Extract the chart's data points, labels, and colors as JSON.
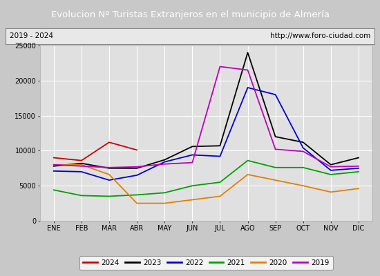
{
  "title": "Evolucion Nº Turistas Extranjeros en el municipio de Almería",
  "subtitle_left": "2019 - 2024",
  "subtitle_right": "http://www.foro-ciudad.com",
  "title_bg_color": "#5080c8",
  "title_text_color": "#ffffff",
  "subtitle_bg_color": "#e8e8e8",
  "subtitle_text_color": "#000000",
  "plot_bg_color": "#e0e0e0",
  "outer_bg_color": "#c8c8c8",
  "months": [
    "ENE",
    "FEB",
    "MAR",
    "ABR",
    "MAY",
    "JUN",
    "JUL",
    "AGO",
    "SEP",
    "OCT",
    "NOV",
    "DIC"
  ],
  "ylim": [
    0,
    25000
  ],
  "yticks": [
    0,
    5000,
    10000,
    15000,
    20000,
    25000
  ],
  "series": {
    "2024": {
      "color": "#cc0000",
      "data": [
        9000,
        8600,
        11200,
        10100,
        null,
        null,
        null,
        null,
        null,
        null,
        null,
        null
      ]
    },
    "2023": {
      "color": "#000000",
      "data": [
        7800,
        8200,
        7500,
        7500,
        8700,
        10600,
        10700,
        24000,
        12000,
        11200,
        8000,
        9000
      ]
    },
    "2022": {
      "color": "#0000cc",
      "data": [
        7100,
        7000,
        5800,
        6500,
        8400,
        9400,
        9200,
        19000,
        18000,
        10400,
        7200,
        7500
      ]
    },
    "2021": {
      "color": "#00a000",
      "data": [
        4400,
        3600,
        3500,
        3700,
        4000,
        5000,
        5500,
        8600,
        7600,
        7600,
        6600,
        7000
      ]
    },
    "2020": {
      "color": "#e08000",
      "data": [
        8000,
        8000,
        6600,
        2500,
        2500,
        3000,
        3500,
        6600,
        5800,
        5000,
        4100,
        4600
      ]
    },
    "2019": {
      "color": "#bb00bb",
      "data": [
        8000,
        7800,
        7600,
        7700,
        8100,
        8300,
        22000,
        21500,
        10200,
        9900,
        7700,
        7800
      ]
    }
  }
}
